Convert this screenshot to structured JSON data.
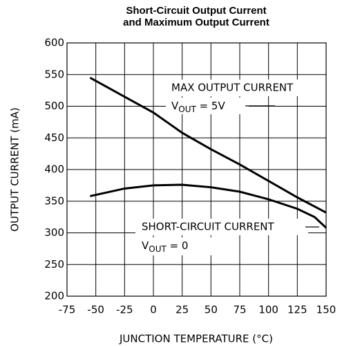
{
  "chart_data": {
    "type": "line",
    "title": [
      "Short-Circuit Output Current",
      "and Maximum Output Current"
    ],
    "x_label": "JUNCTION TEMPERATURE (°C)",
    "y_label": "OUTPUT CURRENT (mA)",
    "xlim": [
      -75,
      150
    ],
    "xticks": [
      -75,
      -50,
      -25,
      0,
      25,
      50,
      75,
      100,
      125,
      150
    ],
    "ylim": [
      200,
      600
    ],
    "yticks": [
      200,
      250,
      300,
      350,
      400,
      450,
      500,
      550,
      600
    ],
    "grid": true,
    "series": [
      {
        "color": "#000000",
        "x": [
          -55,
          -25,
          0,
          25,
          50,
          75,
          100,
          125,
          150
        ],
        "values": [
          545,
          515,
          490,
          458,
          432,
          408,
          382,
          356,
          332
        ]
      },
      {
        "color": "#000000",
        "x": [
          -55,
          -25,
          0,
          25,
          50,
          75,
          100,
          125,
          140,
          150
        ],
        "values": [
          358,
          370,
          375,
          376,
          372,
          365,
          353,
          338,
          325,
          308
        ]
      }
    ],
    "annotations": [
      {
        "text": "MAX OUTPUT CURRENT"
      },
      {
        "base": "V",
        "sub": "OUT",
        "tail": " = 5V"
      },
      {
        "text": "SHORT-CIRCUIT CURRENT"
      },
      {
        "base": "V",
        "sub": "OUT",
        "tail": " = 0"
      }
    ]
  }
}
